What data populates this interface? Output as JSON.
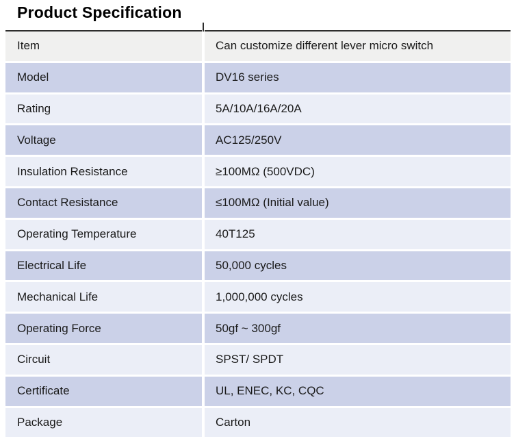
{
  "page": {
    "title": "Product Specification"
  },
  "colors": {
    "top_border": "#2d2d2d",
    "header_row_bg": "#f0f0ef",
    "row_medium_bg": "#cbd1e8",
    "row_light_bg": "#ebeef7",
    "text": "#1a1a1a",
    "title_text": "#000000",
    "page_bg": "#ffffff"
  },
  "table": {
    "rows": [
      {
        "label": "Item",
        "value": "Can customize different lever micro switch"
      },
      {
        "label": "Model",
        "value": "DV16 series"
      },
      {
        "label": "Rating",
        "value": "5A/10A/16A/20A"
      },
      {
        "label": "Voltage",
        "value": "AC125/250V"
      },
      {
        "label": "Insulation Resistance",
        "value": "≥100MΩ (500VDC)"
      },
      {
        "label": "Contact Resistance",
        "value": "≤100MΩ (Initial value)"
      },
      {
        "label": "Operating Temperature",
        "value": "40T125"
      },
      {
        "label": "Electrical Life",
        "value": "50,000 cycles"
      },
      {
        "label": "Mechanical Life",
        "value": "1,000,000 cycles"
      },
      {
        "label": "Operating Force",
        "value": "50gf ~ 300gf"
      },
      {
        "label": "Circuit",
        "value": "SPST/ SPDT"
      },
      {
        "label": "Certificate",
        "value": "UL, ENEC, KC, CQC"
      },
      {
        "label": "Package",
        "value": "Carton"
      }
    ]
  }
}
